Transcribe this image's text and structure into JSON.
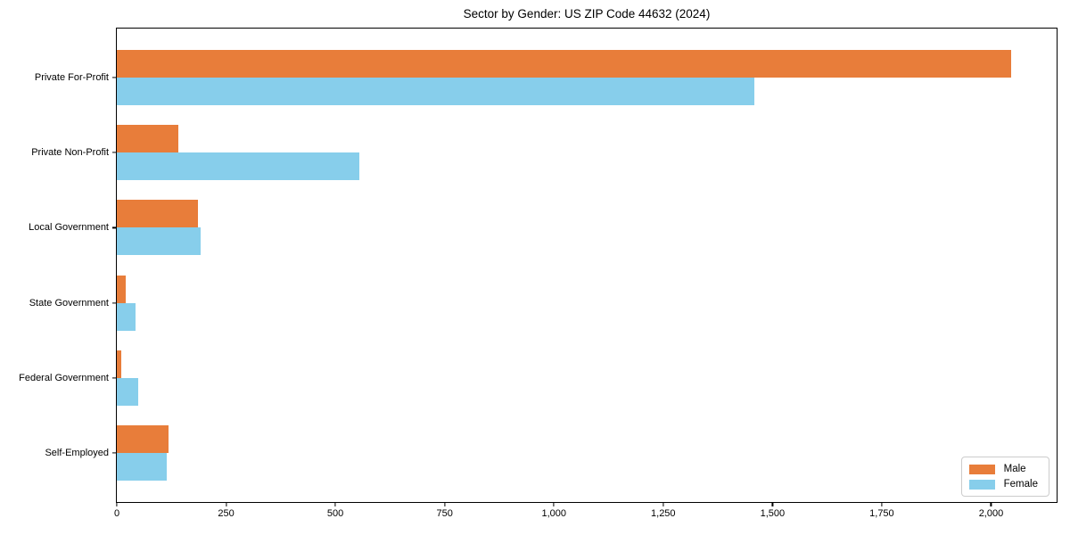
{
  "chart_data": {
    "type": "bar",
    "orientation": "horizontal",
    "title": "Sector by Gender: US ZIP Code 44632 (2024)",
    "categories": [
      "Private For-Profit",
      "Private Non-Profit",
      "Local Government",
      "State Government",
      "Federal Government",
      "Self-Employed"
    ],
    "series": [
      {
        "name": "Male",
        "color": "#e87d3a",
        "values": [
          2045,
          140,
          186,
          21,
          11,
          118
        ]
      },
      {
        "name": "Female",
        "color": "#87ceeb",
        "values": [
          1458,
          555,
          191,
          43,
          48,
          114
        ]
      }
    ],
    "xlabel": "",
    "ylabel": "",
    "xlim": [
      0,
      2150
    ],
    "xticks": [
      0,
      250,
      500,
      750,
      1000,
      1250,
      1500,
      1750,
      2000
    ],
    "xtick_labels": [
      "0",
      "250",
      "500",
      "750",
      "1,000",
      "1,250",
      "1,500",
      "1,750",
      "2,000"
    ],
    "grid": false,
    "legend": {
      "position": "lower-right",
      "entries": [
        "Male",
        "Female"
      ]
    },
    "frame_color": "#000000",
    "background_color": "#ffffff"
  }
}
